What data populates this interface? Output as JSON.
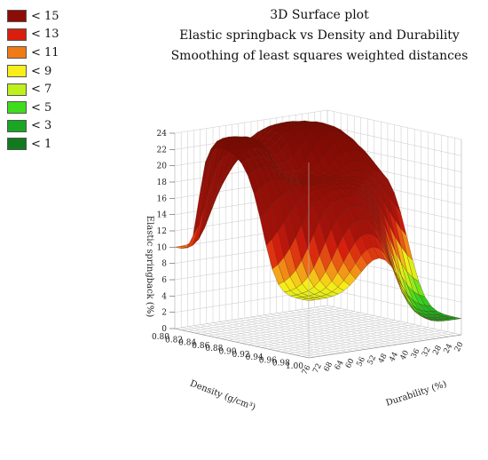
{
  "chart_data": {
    "type": "surface",
    "title_lines": [
      "3D Surface plot",
      "Elastic springback vs Density and Durability",
      "Smoothing of least squares weighted distances"
    ],
    "xlabel": "Density (g/cm³)",
    "ylabel": "Durability (%)",
    "zlabel": "Elastic springback (%)",
    "x_ticks": [
      "0.80",
      "0.82",
      "0.84",
      "0.86",
      "0.88",
      "0.90",
      "0.92",
      "0.94",
      "0.96",
      "0.98",
      "1.00"
    ],
    "y_ticks": [
      "20",
      "24",
      "28",
      "32",
      "36",
      "40",
      "44",
      "48",
      "52",
      "56",
      "60",
      "64",
      "68",
      "72",
      "76"
    ],
    "z_ticks": [
      "0",
      "2",
      "4",
      "6",
      "8",
      "10",
      "12",
      "14",
      "16",
      "18",
      "20",
      "22",
      "24"
    ],
    "zlim": [
      0,
      24
    ],
    "grid": true,
    "legend_position": "top-left",
    "legend": [
      {
        "label": "< 15",
        "color": "#8b0d06"
      },
      {
        "label": "< 13",
        "color": "#d81f0e"
      },
      {
        "label": "< 11",
        "color": "#f07a16"
      },
      {
        "label": "< 9",
        "color": "#f7ee1a"
      },
      {
        "label": "< 7",
        "color": "#bdf01c"
      },
      {
        "label": "< 5",
        "color": "#3fdc1e"
      },
      {
        "label": "< 3",
        "color": "#18a623"
      },
      {
        "label": "< 1",
        "color": "#127a1e"
      }
    ],
    "control_points": [
      {
        "density": 0.8,
        "durability": 76,
        "springback": 10
      },
      {
        "density": 0.9,
        "durability": 52,
        "springback": 19
      },
      {
        "density": 0.84,
        "durability": 38,
        "springback": 24
      },
      {
        "density": 0.86,
        "durability": 68,
        "springback": 24
      },
      {
        "density": 1.0,
        "durability": 76,
        "springback": 7
      },
      {
        "density": 1.0,
        "durability": 20,
        "springback": 2
      },
      {
        "density": 0.8,
        "durability": 20,
        "springback": 13
      }
    ]
  }
}
